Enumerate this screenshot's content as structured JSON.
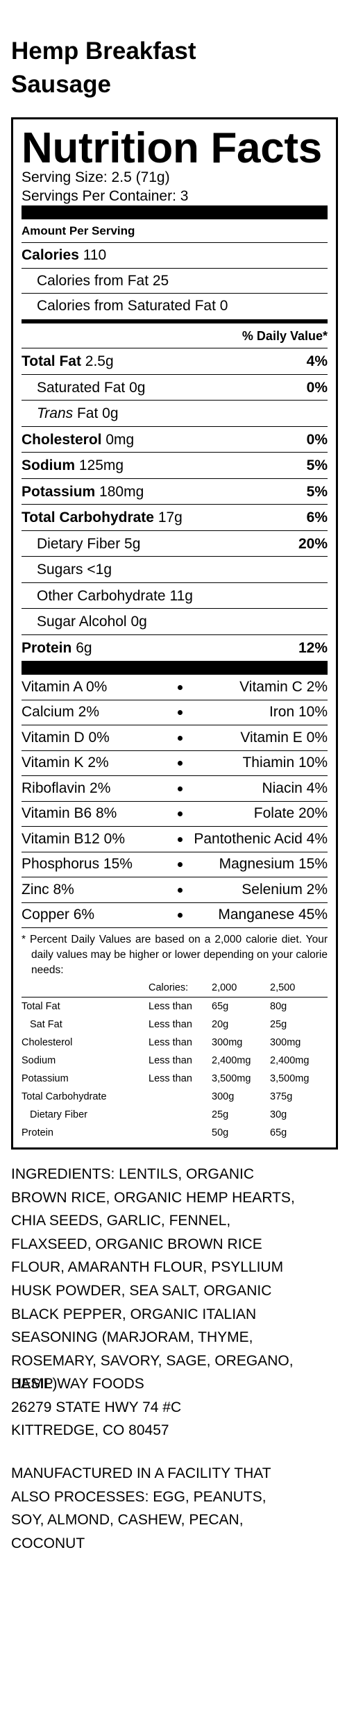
{
  "title": [
    "Hemp Breakfast",
    "Sausage"
  ],
  "label": {
    "heading": "Nutrition Facts",
    "serving_size": "Serving Size: 2.5 (71g)",
    "servings_per_container": "Servings Per Container: 3",
    "amount_per_serving": "Amount Per Serving",
    "calories": {
      "label": "Calories",
      "value": "110"
    },
    "calories_from_fat": "Calories from Fat 25",
    "calories_from_sat_fat": "Calories from Saturated Fat 0",
    "daily_value_header": "% Daily Value*",
    "nutrients": [
      {
        "name": "Total Fat",
        "amount": "2.5g",
        "dv": "4%",
        "bold": true
      },
      {
        "name": "Saturated Fat",
        "amount": "0g",
        "dv": "0%",
        "bold": false
      },
      {
        "name": "Trans",
        "amount": "Fat 0g",
        "bold": false,
        "italic": true
      },
      {
        "name": "Cholesterol",
        "amount": "0mg",
        "dv": "0%",
        "bold": true
      },
      {
        "name": "Sodium",
        "amount": "125mg",
        "dv": "5%",
        "bold": true
      },
      {
        "name": "Potassium",
        "amount": "180mg",
        "dv": "5%",
        "bold": true
      },
      {
        "name": "Total Carbohydrate",
        "amount": "17g",
        "dv": "6%",
        "bold": true
      },
      {
        "name": "Dietary Fiber",
        "amount": "5g",
        "dv": "20%",
        "bold": false
      },
      {
        "name": "Sugars",
        "amount": "<1g",
        "bold": false
      },
      {
        "name": "Other Carbohydrate",
        "amount": "11g",
        "bold": false
      },
      {
        "name": "Sugar Alcohol",
        "amount": "0g",
        "bold": false
      },
      {
        "name": "Protein",
        "amount": "6g",
        "dv": "12%",
        "bold": true
      }
    ],
    "vitamins": [
      {
        "left": "Vitamin A 0%",
        "right": "Vitamin C 2%"
      },
      {
        "left": "Calcium 2%",
        "right": "Iron 10%"
      },
      {
        "left": "Vitamin D 0%",
        "right": "Vitamin E 0%"
      },
      {
        "left": "Vitamin K 2%",
        "right": "Thiamin 10%"
      },
      {
        "left": "Riboflavin 2%",
        "right": "Niacin 4%"
      },
      {
        "left": "Vitamin B6 8%",
        "right": "Folate 20%"
      },
      {
        "left": "Vitamin B12 0%",
        "right": "Pantothenic Acid 4%"
      },
      {
        "left": "Phosphorus 15%",
        "right": "Magnesium 15%"
      },
      {
        "left": "Zinc 8%",
        "right": "Selenium 2%"
      },
      {
        "left": "Copper 6%",
        "right": "Manganese 45%"
      }
    ],
    "footnote": "* Percent Daily Values are based on a 2,000 calorie diet. Your daily values may be higher or lower depending on your calorie needs:",
    "table": {
      "header": {
        "calories": "Calories:",
        "cols": [
          "2,000",
          "2,500"
        ]
      },
      "rows": [
        {
          "name": "Total Fat",
          "qualifier": "Less than",
          "values": [
            "65g",
            "80g"
          ]
        },
        {
          "name": "Sat Fat",
          "indent": true,
          "qualifier": "Less than",
          "values": [
            "20g",
            "25g"
          ]
        },
        {
          "name": "Cholesterol",
          "qualifier": "Less than",
          "values": [
            "300mg",
            "300mg"
          ]
        },
        {
          "name": "Sodium",
          "qualifier": "Less than",
          "values": [
            "2,400mg",
            "2,400mg"
          ]
        },
        {
          "name": "Potassium",
          "qualifier": "Less than",
          "values": [
            "3,500mg",
            "3,500mg"
          ]
        },
        {
          "name": "Total Carbohydrate",
          "values": [
            "300g",
            "375g"
          ]
        },
        {
          "name": "Dietary Fiber",
          "indent": true,
          "values": [
            "25g",
            "30g"
          ]
        },
        {
          "name": "Protein",
          "values": [
            "50g",
            "65g"
          ]
        }
      ]
    }
  },
  "ingredients": [
    "INGREDIENTS: LENTILS, ORGANIC",
    "BROWN RICE, ORGANIC HEMP HEARTS,",
    "CHIA SEEDS, GARLIC, FENNEL,",
    "FLAXSEED, ORGANIC BROWN RICE",
    "FLOUR, AMARANTH FLOUR, PSYLLIUM",
    "HUSK POWDER, SEA SALT, ORGANIC",
    "BLACK PEPPER, ORGANIC ITALIAN",
    "SEASONING (MARJORAM, THYME,",
    "ROSEMARY, SAVORY, SAGE, OREGANO,",
    "BASIL)"
  ],
  "address": [
    "HEMP WAY FOODS",
    "26279 STATE HWY 74 #C",
    "KITTREDGE, CO 80457"
  ],
  "allergens": [
    "MANUFACTURED IN A FACILITY THAT",
    "ALSO PROCESSES: EGG, PEANUTS,",
    "SOY, ALMOND, CASHEW, PECAN,",
    "COCONUT"
  ]
}
